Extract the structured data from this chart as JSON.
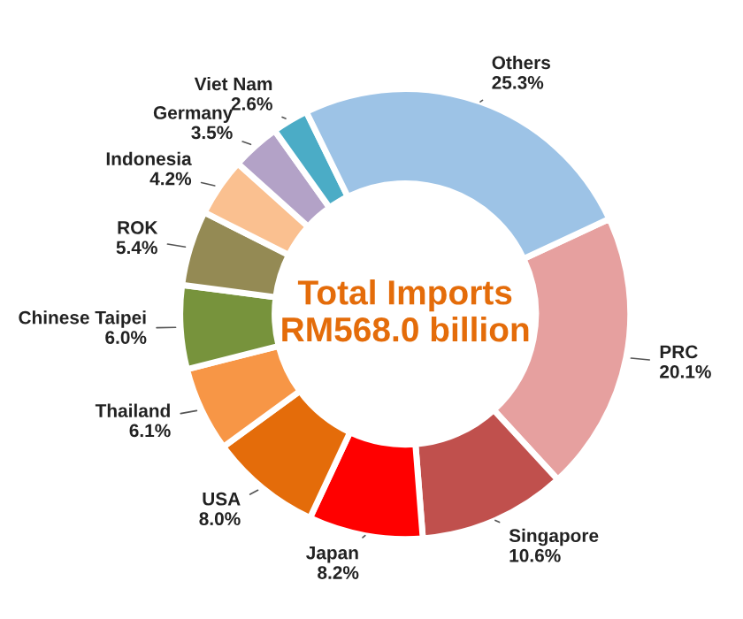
{
  "chart_data": {
    "type": "donut",
    "title": "Total Imports RM568.0 billion",
    "categories": [
      "PRC",
      "Singapore",
      "Japan",
      "USA",
      "Thailand",
      "Chinese Taipei",
      "ROK",
      "Indonesia",
      "Germany",
      "Viet Nam",
      "Others"
    ],
    "values": [
      20.1,
      10.6,
      8.2,
      8.0,
      6.1,
      6.0,
      5.4,
      4.2,
      3.5,
      2.6,
      25.3
    ],
    "value_labels": [
      "20.1%",
      "10.6%",
      "8.2%",
      "8.0%",
      "6.1%",
      "6.0%",
      "5.4%",
      "4.2%",
      "3.5%",
      "2.6%",
      "25.3%"
    ],
    "colors": [
      "#e6a09f",
      "#c0504d",
      "#ff0000",
      "#e46c0a",
      "#f79646",
      "#77933c",
      "#948a54",
      "#fac090",
      "#b3a2c7",
      "#4bacc6",
      "#9dc3e6"
    ]
  }
}
